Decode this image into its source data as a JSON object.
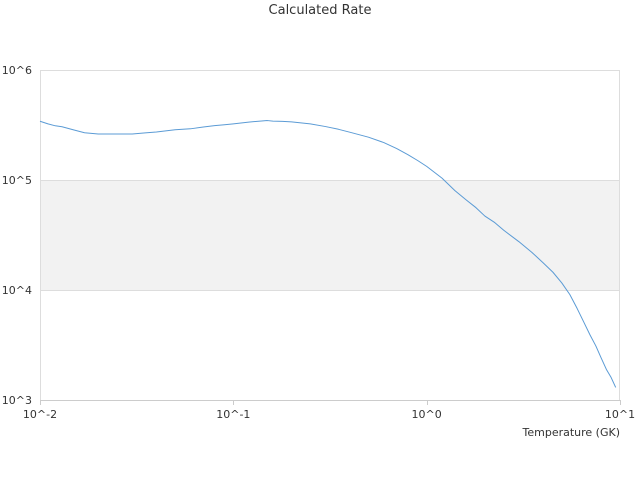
{
  "chart_data": {
    "type": "line",
    "title": "Calculated Rate",
    "xlabel": "Temperature (GK)",
    "ylabel": "",
    "xscale": "log",
    "yscale": "log",
    "xlim": [
      0.01,
      10
    ],
    "ylim": [
      1000,
      1000000
    ],
    "x_ticks": [
      {
        "value": 0.01,
        "label": "10^-2"
      },
      {
        "value": 0.1,
        "label": "10^-1"
      },
      {
        "value": 1,
        "label": "10^0"
      },
      {
        "value": 10,
        "label": "10^1"
      }
    ],
    "y_ticks": [
      {
        "value": 1000,
        "label": "10^3"
      },
      {
        "value": 10000,
        "label": "10^4"
      },
      {
        "value": 100000,
        "label": "10^5"
      },
      {
        "value": 1000000,
        "label": "10^6"
      }
    ],
    "grid": true,
    "legend": "none",
    "alternating_band": {
      "from": 10000,
      "to": 100000,
      "color": "#f2f2f2"
    },
    "line_color": "#5b9bd5",
    "series": [
      {
        "x": [
          0.01,
          0.011,
          0.012,
          0.013,
          0.015,
          0.017,
          0.02,
          0.025,
          0.03,
          0.035,
          0.04,
          0.05,
          0.06,
          0.07,
          0.08,
          0.09,
          0.1,
          0.12,
          0.14,
          0.15,
          0.16,
          0.18,
          0.2,
          0.25,
          0.3,
          0.35,
          0.4,
          0.5,
          0.6,
          0.7,
          0.8,
          0.9,
          1.0,
          1.2,
          1.4,
          1.6,
          1.8,
          2.0,
          2.25,
          2.5,
          3.0,
          3.5,
          4.0,
          4.5,
          5.0,
          5.5,
          6.0,
          6.5,
          7.0,
          7.5,
          8.0,
          8.5,
          9.0,
          9.5
        ],
        "y": [
          342000,
          324000,
          311000,
          305000,
          285000,
          269000,
          262000,
          262000,
          262000,
          268000,
          273000,
          286000,
          292000,
          303000,
          312000,
          318000,
          324000,
          336000,
          344000,
          347000,
          343000,
          341000,
          338000,
          324000,
          306000,
          289000,
          272000,
          245000,
          219000,
          193000,
          170000,
          150000,
          133000,
          104000,
          80000,
          66000,
          56000,
          47000,
          41000,
          35000,
          27500,
          22000,
          17700,
          14500,
          11600,
          9100,
          6800,
          5100,
          3900,
          3100,
          2400,
          1900,
          1600,
          1300
        ]
      }
    ]
  }
}
